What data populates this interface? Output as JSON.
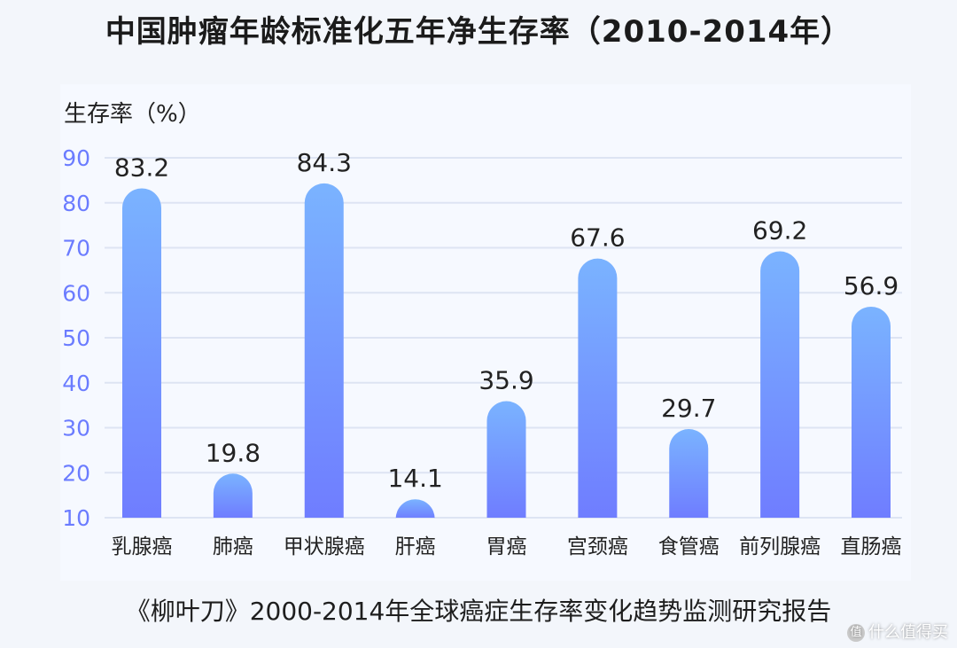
{
  "chart_data": {
    "type": "bar",
    "title": "中国肿瘤年龄标准化五年净生存率（2010-2014年）",
    "ylabel": "生存率（%）",
    "xlabel": "",
    "categories": [
      "乳腺癌",
      "肺癌",
      "甲状腺癌",
      "肝癌",
      "胃癌",
      "宫颈癌",
      "食管癌",
      "前列腺癌",
      "直肠癌"
    ],
    "values": [
      83.2,
      19.8,
      84.3,
      14.1,
      35.9,
      67.6,
      29.7,
      69.2,
      56.9
    ],
    "value_labels": [
      "83.2",
      "19.8",
      "84.3",
      "14.1",
      "35.9",
      "67.6",
      "29.7",
      "69.2",
      "56.9"
    ],
    "ylim": [
      10,
      90
    ],
    "yticks": [
      "10",
      "20",
      "30",
      "40",
      "50",
      "60",
      "70",
      "80",
      "90"
    ],
    "grid": true,
    "legend": "none",
    "colors": {
      "bar_top": "#7ab3ff",
      "bar_bottom": "#6f7dff",
      "tick": "#6b7cff",
      "grid": "#dde4f3"
    }
  },
  "caption": "《柳叶刀》2000-2014年全球癌症生存率变化趋势监测研究报告",
  "watermark": {
    "icon": "chat-bubble-icon",
    "text": "什么值得买"
  }
}
